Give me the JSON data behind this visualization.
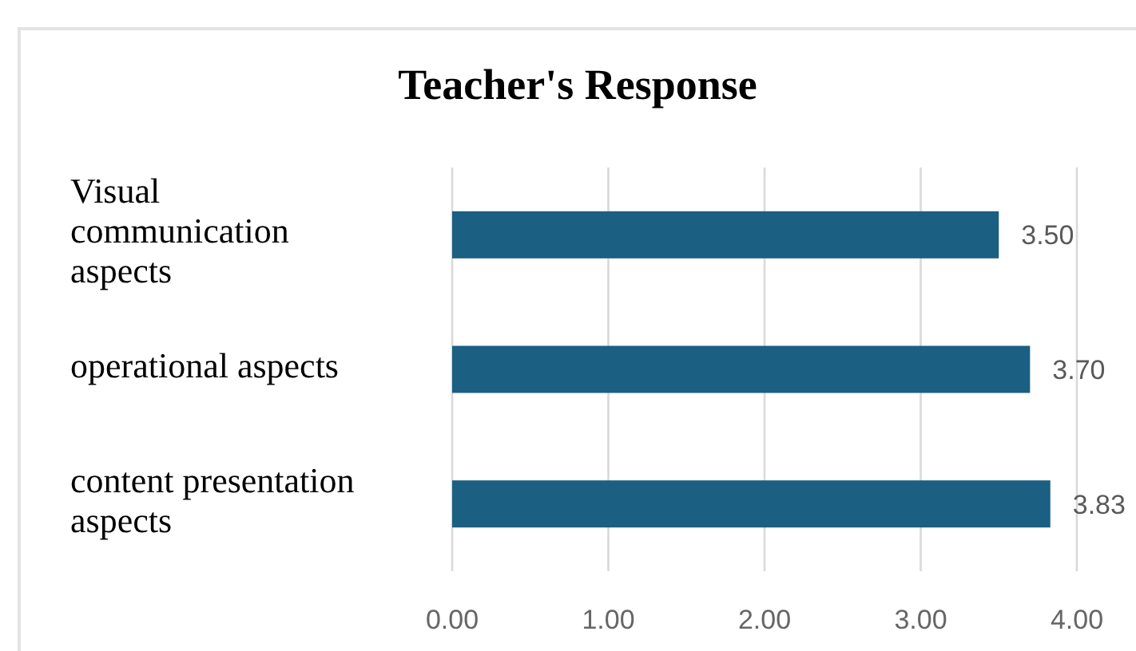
{
  "chart_data": {
    "type": "bar",
    "orientation": "horizontal",
    "title": "Teacher's Response",
    "categories": [
      "Visual communication aspects",
      "operational aspects",
      "content presentation aspects"
    ],
    "values": [
      3.5,
      3.7,
      3.83
    ],
    "value_labels": [
      "3.50",
      "3.70",
      "3.83"
    ],
    "color": "#1b5f83",
    "xlim": [
      0,
      4
    ],
    "xticks": [
      {
        "value": 0,
        "label": "0.00"
      },
      {
        "value": 1,
        "label": "1.00"
      },
      {
        "value": 2,
        "label": "2.00"
      },
      {
        "value": 3,
        "label": "3.00"
      },
      {
        "value": 4,
        "label": "4.00"
      }
    ],
    "grid": "x"
  }
}
